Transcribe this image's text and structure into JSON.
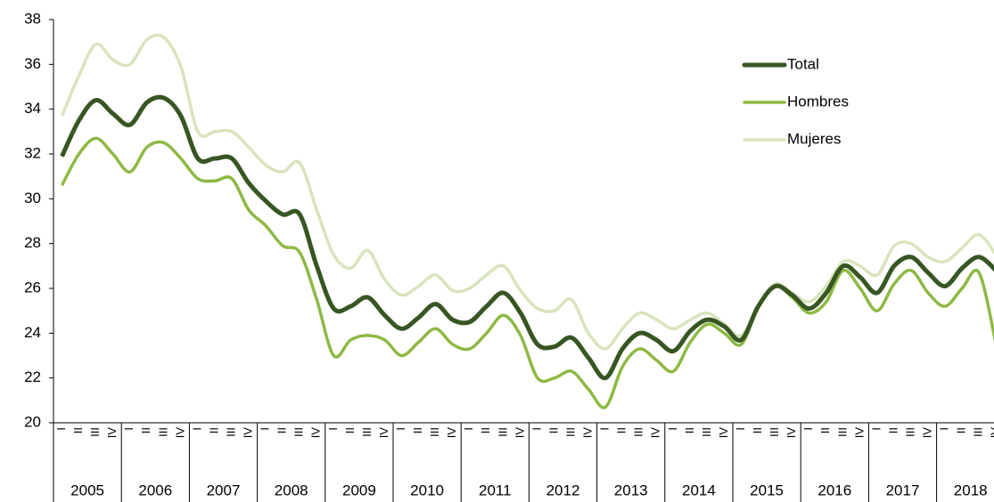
{
  "chart_data": {
    "type": "line",
    "categories": [
      "I",
      "II",
      "III",
      "IV",
      "I",
      "II",
      "III",
      "IV",
      "I",
      "II",
      "III",
      "IV",
      "I",
      "II",
      "III",
      "IV",
      "I",
      "II",
      "III",
      "IV",
      "I",
      "II",
      "III",
      "IV",
      "I",
      "II",
      "III",
      "IV",
      "I",
      "II",
      "III",
      "IV",
      "I",
      "II",
      "III",
      "IV",
      "I",
      "II",
      "III",
      "IV",
      "I",
      "II",
      "III",
      "IV",
      "I",
      "II",
      "III",
      "IV",
      "I",
      "II",
      "III",
      "IV",
      "I",
      "II",
      "III",
      "IV"
    ],
    "year_groups": [
      "2005",
      "2006",
      "2007",
      "2008",
      "2009",
      "2010",
      "2011",
      "2012",
      "2013",
      "2014",
      "2015",
      "2016",
      "2017",
      "2018"
    ],
    "series": [
      {
        "name": "Total",
        "color": "#375623",
        "values": [
          31.9,
          33.5,
          34.4,
          33.8,
          33.3,
          34.3,
          34.5,
          33.7,
          31.8,
          31.8,
          31.8,
          30.7,
          29.9,
          29.3,
          29.3,
          27.0,
          25.1,
          25.2,
          25.6,
          24.8,
          24.2,
          24.7,
          25.3,
          24.6,
          24.5,
          25.2,
          25.8,
          24.9,
          23.5,
          23.4,
          23.8,
          22.9,
          22.0,
          23.3,
          24.0,
          23.7,
          23.2,
          24.1,
          24.6,
          24.3,
          23.7,
          25.2,
          26.1,
          25.7,
          25.1,
          25.8,
          27.0,
          26.5,
          25.8,
          27.0,
          27.4,
          26.7,
          26.1,
          26.9,
          27.4,
          26.8
        ]
      },
      {
        "name": "Hombres",
        "color": "#8db944",
        "values": [
          30.6,
          32.0,
          32.7,
          32.0,
          31.2,
          32.3,
          32.5,
          31.8,
          30.9,
          30.8,
          30.9,
          29.5,
          28.8,
          27.9,
          27.6,
          25.5,
          23.0,
          23.7,
          23.9,
          23.7,
          23.0,
          23.6,
          24.2,
          23.5,
          23.3,
          24.0,
          24.8,
          23.9,
          22.0,
          22.0,
          22.3,
          21.5,
          20.7,
          22.5,
          23.3,
          22.8,
          22.3,
          23.6,
          24.4,
          24.0,
          23.5,
          25.2,
          26.1,
          25.6,
          24.9,
          25.4,
          26.8,
          26.0,
          25.0,
          26.2,
          26.8,
          25.8,
          25.2,
          26.0,
          26.7,
          23.5
        ]
      },
      {
        "name": "Mujeres",
        "color": "#d8e4bc",
        "values": [
          33.7,
          35.5,
          36.9,
          36.2,
          36.0,
          37.1,
          37.2,
          35.9,
          33.0,
          33.0,
          33.0,
          32.3,
          31.5,
          31.2,
          31.6,
          29.5,
          27.5,
          26.9,
          27.7,
          26.4,
          25.7,
          26.1,
          26.6,
          25.9,
          26.0,
          26.6,
          27.0,
          25.9,
          25.1,
          25.0,
          25.5,
          24.0,
          23.3,
          24.2,
          24.9,
          24.6,
          24.2,
          24.6,
          24.9,
          24.4,
          23.9,
          25.2,
          26.2,
          25.8,
          25.4,
          26.1,
          27.2,
          27.0,
          26.6,
          27.9,
          28.0,
          27.4,
          27.2,
          27.8,
          28.4,
          27.5
        ]
      }
    ],
    "ylim": [
      20,
      38
    ],
    "yticks": [
      20,
      22,
      24,
      26,
      28,
      30,
      32,
      34,
      36,
      38
    ],
    "grid": false,
    "legend": "top-right"
  }
}
